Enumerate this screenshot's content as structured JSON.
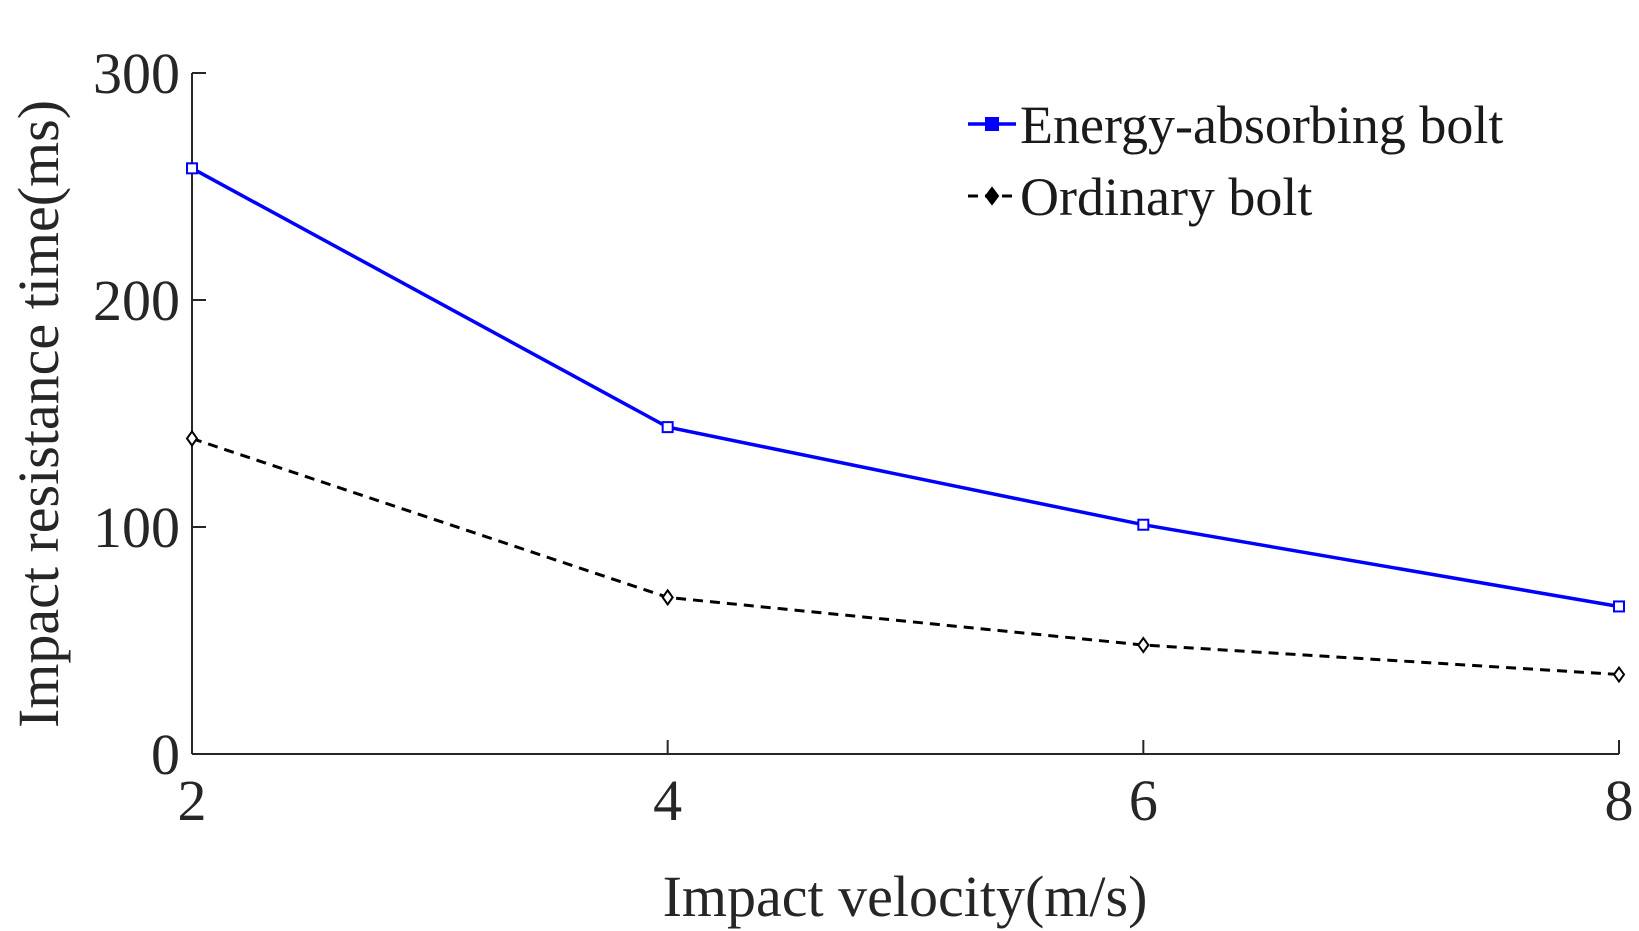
{
  "chart_data": {
    "type": "line",
    "title": "",
    "xlabel": "Impact velocity(m/s)",
    "ylabel": "Impact resistance time(ms)",
    "x": [
      2,
      4,
      6,
      8
    ],
    "xlim": [
      2,
      8
    ],
    "ylim": [
      0,
      300
    ],
    "xticks": [
      "2",
      "4",
      "6",
      "8"
    ],
    "yticks": [
      "0",
      "100",
      "200",
      "300"
    ],
    "grid": false,
    "legend_position": "top-right",
    "series": [
      {
        "name": "Energy-absorbing bolt",
        "values": [
          258,
          144,
          101,
          65
        ],
        "color": "#0000ff",
        "line_style": "solid",
        "marker": "square"
      },
      {
        "name": "Ordinary bolt",
        "values": [
          139,
          69,
          48,
          35
        ],
        "color": "#000000",
        "line_style": "dashed",
        "marker": "diamond"
      }
    ]
  }
}
